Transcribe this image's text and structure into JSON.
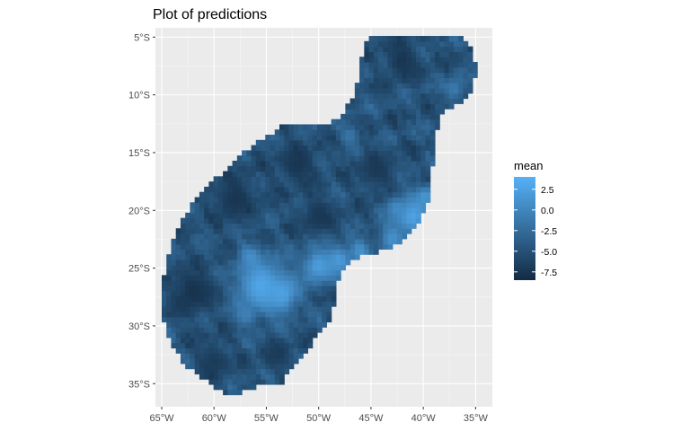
{
  "chart_data": {
    "type": "heatmap",
    "title": "Plot of predictions",
    "xlabel": "",
    "ylabel": "",
    "x_ticks": [
      {
        "value": -65,
        "label": "65°W"
      },
      {
        "value": -60,
        "label": "60°W"
      },
      {
        "value": -55,
        "label": "55°W"
      },
      {
        "value": -50,
        "label": "50°W"
      },
      {
        "value": -45,
        "label": "45°W"
      },
      {
        "value": -40,
        "label": "40°W"
      },
      {
        "value": -35,
        "label": "35°W"
      }
    ],
    "y_ticks": [
      {
        "value": -5,
        "label": "5°S"
      },
      {
        "value": -10,
        "label": "10°S"
      },
      {
        "value": -15,
        "label": "15°S"
      },
      {
        "value": -20,
        "label": "20°S"
      },
      {
        "value": -25,
        "label": "25°S"
      },
      {
        "value": -30,
        "label": "30°S"
      },
      {
        "value": -35,
        "label": "35°S"
      }
    ],
    "xlim": [
      -65.6,
      -33.4
    ],
    "ylim": [
      -37.0,
      -4.2
    ],
    "grid": true,
    "legend": {
      "title": "mean",
      "placement": "right",
      "range": [
        -8.5,
        4.0
      ],
      "ticks": [
        {
          "value": 2.5,
          "label": "2.5"
        },
        {
          "value": 0.0,
          "label": "0.0"
        },
        {
          "value": -2.5,
          "label": "-2.5"
        },
        {
          "value": -5.0,
          "label": "-5.0"
        },
        {
          "value": -7.5,
          "label": "-7.5"
        }
      ],
      "color_low": "#132b43",
      "color_high": "#56b1f7"
    },
    "region_outline": [
      [
        -45.3,
        -5.0
      ],
      [
        -36.3,
        -5.0
      ],
      [
        -35.2,
        -5.9
      ],
      [
        -35.0,
        -7.5
      ],
      [
        -35.1,
        -9.5
      ],
      [
        -36.0,
        -10.5
      ],
      [
        -37.5,
        -11.2
      ],
      [
        -38.5,
        -12.2
      ],
      [
        -38.8,
        -13.5
      ],
      [
        -39.0,
        -15.0
      ],
      [
        -39.1,
        -16.0
      ],
      [
        -39.3,
        -17.8
      ],
      [
        -39.6,
        -19.5
      ],
      [
        -40.6,
        -21.3
      ],
      [
        -41.6,
        -22.5
      ],
      [
        -43.2,
        -23.2
      ],
      [
        -44.8,
        -23.8
      ],
      [
        -46.5,
        -24.2
      ],
      [
        -47.8,
        -25.3
      ],
      [
        -48.3,
        -26.6
      ],
      [
        -48.5,
        -28.0
      ],
      [
        -48.8,
        -29.5
      ],
      [
        -49.8,
        -30.5
      ],
      [
        -51.0,
        -32.0
      ],
      [
        -52.5,
        -33.8
      ],
      [
        -53.6,
        -35.0
      ],
      [
        -55.5,
        -35.1
      ],
      [
        -56.4,
        -35.5
      ],
      [
        -58.0,
        -36.0
      ],
      [
        -59.2,
        -35.7
      ],
      [
        -61.4,
        -34.4
      ],
      [
        -63.0,
        -33.2
      ],
      [
        -64.0,
        -31.6
      ],
      [
        -64.9,
        -29.5
      ],
      [
        -65.0,
        -27.5
      ],
      [
        -64.6,
        -24.5
      ],
      [
        -63.5,
        -21.5
      ],
      [
        -62.2,
        -19.6
      ],
      [
        -60.5,
        -17.8
      ],
      [
        -58.5,
        -16.2
      ],
      [
        -56.5,
        -14.5
      ],
      [
        -55.0,
        -13.8
      ],
      [
        -53.4,
        -12.7
      ],
      [
        -52.0,
        -12.6
      ],
      [
        -50.6,
        -12.6
      ],
      [
        -49.2,
        -12.6
      ],
      [
        -48.0,
        -12.0
      ],
      [
        -46.9,
        -10.5
      ],
      [
        -46.1,
        -8.5
      ],
      [
        -45.8,
        -6.5
      ]
    ],
    "bright_spots": [
      {
        "x": -55.5,
        "y": -26.5,
        "r": 2.4,
        "value": 3.0
      },
      {
        "x": -53.5,
        "y": -27.2,
        "r": 1.6,
        "value": 2.5
      },
      {
        "x": -56.5,
        "y": -24.0,
        "r": 1.0,
        "value": 0.8
      },
      {
        "x": -50.0,
        "y": -24.8,
        "r": 1.6,
        "value": 2.2
      },
      {
        "x": -48.0,
        "y": -24.3,
        "r": 1.3,
        "value": 1.8
      },
      {
        "x": -46.0,
        "y": -23.5,
        "r": 1.0,
        "value": 1.2
      },
      {
        "x": -43.0,
        "y": -22.5,
        "r": 1.2,
        "value": 0.8
      },
      {
        "x": -41.0,
        "y": -20.5,
        "r": 1.8,
        "value": 2.6
      },
      {
        "x": -39.8,
        "y": -18.8,
        "r": 0.9,
        "value": 1.5
      },
      {
        "x": -42.5,
        "y": -19.8,
        "r": 0.9,
        "value": 0.5
      },
      {
        "x": -37.0,
        "y": -9.5,
        "r": 1.0,
        "value": -1.0
      },
      {
        "x": -47.0,
        "y": -13.5,
        "r": 0.9,
        "value": -1.5
      },
      {
        "x": -57.0,
        "y": -29.0,
        "r": 1.0,
        "value": -0.5
      }
    ],
    "dark_spots": [
      {
        "x": -62.0,
        "y": -27.0,
        "r": 2.0,
        "value": -7.8
      },
      {
        "x": -58.0,
        "y": -19.0,
        "r": 2.0,
        "value": -7.5
      },
      {
        "x": -52.0,
        "y": -16.0,
        "r": 1.8,
        "value": -7.5
      },
      {
        "x": -44.5,
        "y": -16.5,
        "r": 1.6,
        "value": -7.2
      },
      {
        "x": -42.0,
        "y": -7.0,
        "r": 1.6,
        "value": -7.5
      },
      {
        "x": -60.0,
        "y": -33.0,
        "r": 1.5,
        "value": -7.0
      },
      {
        "x": -50.0,
        "y": -20.5,
        "r": 1.6,
        "value": -7.3
      },
      {
        "x": -54.0,
        "y": -32.5,
        "r": 1.3,
        "value": -7.0
      }
    ],
    "base_value": -4.8,
    "noise_amplitude": 1.6
  }
}
